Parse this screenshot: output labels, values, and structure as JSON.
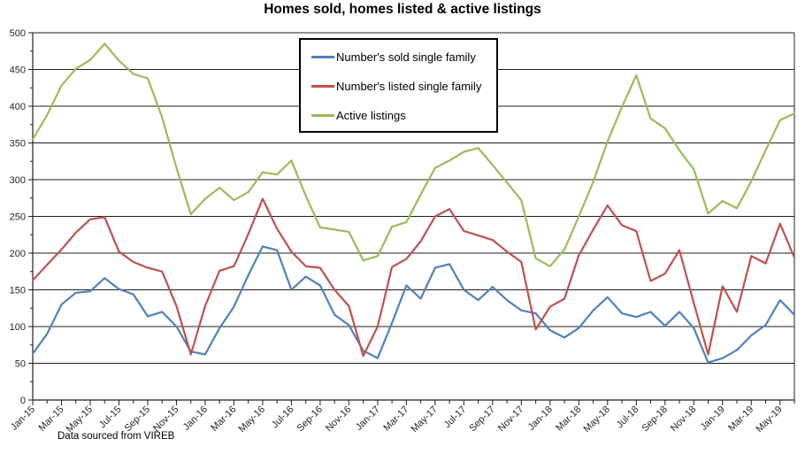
{
  "title": "Homes sold, homes listed & active listings",
  "footer": {
    "source_note": "Data sourced from VIREB"
  },
  "legend": {
    "items": [
      {
        "label": "Number's sold single family",
        "color": "#4F81BD"
      },
      {
        "label": "Number's listed single family",
        "color": "#C0504D"
      },
      {
        "label": "Active listings",
        "color": "#9BBB59"
      }
    ]
  },
  "chart_data": {
    "type": "line",
    "title": "Homes sold, homes listed & active listings",
    "xlabel": "",
    "ylabel": "",
    "ylim": [
      0,
      500
    ],
    "y_tick_step": 50,
    "y_minor_step": 25,
    "grid": true,
    "legend_position": "top-center-inside",
    "x_label_every": 2,
    "categories": [
      "Jan-15",
      "Feb-15",
      "Mar-15",
      "Apr-15",
      "May-15",
      "Jun-15",
      "Jul-15",
      "Aug-15",
      "Sep-15",
      "Oct-15",
      "Nov-15",
      "Dec-15",
      "Jan-16",
      "Feb-16",
      "Mar-16",
      "Apr-16",
      "May-16",
      "Jun-16",
      "Jul-16",
      "Aug-16",
      "Sep-16",
      "Oct-16",
      "Nov-16",
      "Dec-16",
      "Jan-17",
      "Feb-17",
      "Mar-17",
      "Apr-17",
      "May-17",
      "Jun-17",
      "Jul-17",
      "Aug-17",
      "Sep-17",
      "Oct-17",
      "Nov-17",
      "Dec-17",
      "Jan-18",
      "Feb-18",
      "Mar-18",
      "Apr-18",
      "May-18",
      "Jun-18",
      "Jul-18",
      "Aug-18",
      "Sep-18",
      "Oct-18",
      "Nov-18",
      "Dec-18",
      "Jan-19",
      "Feb-19",
      "Mar-19",
      "Apr-19",
      "May-19",
      "Jun-19"
    ],
    "series": [
      {
        "name": "Number's sold single family",
        "color": "#4F81BD",
        "values": [
          63,
          90,
          130,
          146,
          148,
          166,
          151,
          144,
          114,
          120,
          100,
          66,
          62,
          98,
          127,
          170,
          209,
          204,
          150,
          168,
          156,
          116,
          102,
          67,
          57,
          105,
          156,
          138,
          180,
          185,
          150,
          136,
          154,
          136,
          122,
          118,
          95,
          85,
          98,
          122,
          140,
          118,
          113,
          120,
          101,
          120,
          98,
          51,
          57,
          68,
          88,
          102,
          136,
          116
        ]
      },
      {
        "name": "Number's listed single family",
        "color": "#C0504D",
        "values": [
          163,
          184,
          205,
          228,
          246,
          249,
          202,
          188,
          180,
          175,
          128,
          62,
          128,
          176,
          182,
          226,
          274,
          233,
          202,
          182,
          180,
          150,
          128,
          60,
          100,
          181,
          192,
          216,
          250,
          260,
          230,
          224,
          218,
          202,
          188,
          96,
          127,
          138,
          197,
          232,
          265,
          238,
          230,
          162,
          172,
          204,
          132,
          62,
          155,
          120,
          196,
          186,
          240,
          194
        ]
      },
      {
        "name": "Active listings",
        "color": "#9BBB59",
        "values": [
          355,
          388,
          428,
          451,
          463,
          485,
          462,
          444,
          438,
          385,
          316,
          253,
          274,
          289,
          272,
          283,
          310,
          307,
          326,
          278,
          235,
          232,
          229,
          190,
          196,
          236,
          242,
          280,
          316,
          326,
          338,
          343,
          320,
          296,
          272,
          193,
          182,
          205,
          250,
          297,
          352,
          399,
          442,
          383,
          370,
          340,
          314,
          254,
          271,
          261,
          298,
          340,
          381,
          390
        ]
      }
    ]
  }
}
